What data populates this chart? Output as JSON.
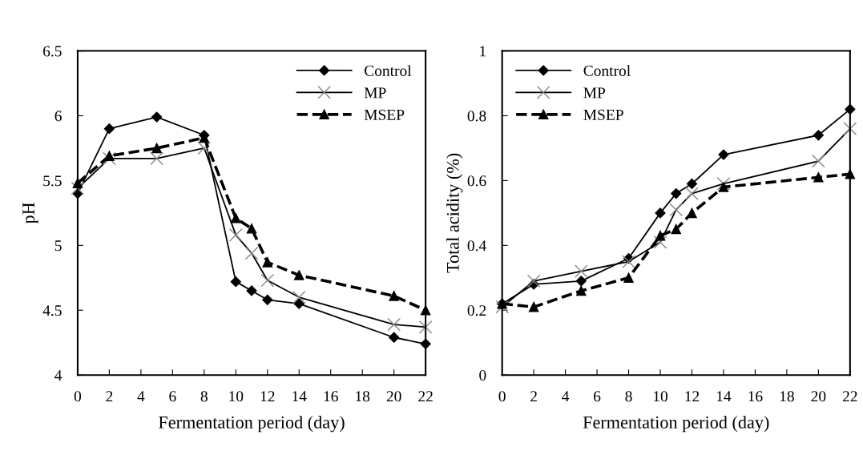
{
  "chart_data": [
    {
      "type": "line",
      "xlabel": "Fermentation period (day)",
      "ylabel": "pH",
      "x": [
        0,
        2,
        5,
        8,
        10,
        11,
        12,
        14,
        20,
        22
      ],
      "xlim": [
        0,
        22
      ],
      "xticks": [
        0,
        2,
        4,
        6,
        8,
        10,
        12,
        14,
        16,
        18,
        20,
        22
      ],
      "ylim": [
        4,
        6.5
      ],
      "yticks": [
        4,
        4.5,
        5,
        5.5,
        6,
        6.5
      ],
      "grid": false,
      "legend": "top right",
      "series": [
        {
          "name": "Control",
          "color": "#000000",
          "marker": "diamond",
          "line_style": "solid",
          "values": [
            5.4,
            5.9,
            5.99,
            5.85,
            4.72,
            4.65,
            4.58,
            4.55,
            4.29,
            4.24
          ]
        },
        {
          "name": "MP",
          "color": "#000000",
          "marker": "cross",
          "line_style": "solid",
          "values": [
            5.44,
            5.67,
            5.67,
            5.75,
            5.08,
            4.94,
            4.73,
            4.6,
            4.39,
            4.37
          ]
        },
        {
          "name": "MSEP",
          "color": "#000000",
          "marker": "triangle",
          "line_style": "dashed",
          "values": [
            5.48,
            5.69,
            5.75,
            5.83,
            5.21,
            5.13,
            4.87,
            4.77,
            4.61,
            4.5
          ]
        }
      ]
    },
    {
      "type": "line",
      "xlabel": "Fermentation period (day)",
      "ylabel": "Total acidity (%)",
      "x": [
        0,
        2,
        5,
        8,
        10,
        11,
        12,
        14,
        20,
        22
      ],
      "xlim": [
        0,
        22
      ],
      "xticks": [
        0,
        2,
        4,
        6,
        8,
        10,
        12,
        14,
        16,
        18,
        20,
        22
      ],
      "ylim": [
        0,
        1
      ],
      "yticks": [
        0,
        0.2,
        0.4,
        0.6,
        0.8,
        1
      ],
      "grid": false,
      "legend": "top left",
      "series": [
        {
          "name": "Control",
          "color": "#000000",
          "marker": "diamond",
          "line_style": "solid",
          "values": [
            0.22,
            0.28,
            0.29,
            0.36,
            0.5,
            0.56,
            0.59,
            0.68,
            0.74,
            0.82
          ]
        },
        {
          "name": "MP",
          "color": "#000000",
          "marker": "cross",
          "line_style": "solid",
          "values": [
            0.21,
            0.29,
            0.32,
            0.35,
            0.41,
            0.51,
            0.56,
            0.59,
            0.66,
            0.76
          ]
        },
        {
          "name": "MSEP",
          "color": "#000000",
          "marker": "triangle",
          "line_style": "dashed",
          "values": [
            0.22,
            0.21,
            0.26,
            0.3,
            0.43,
            0.45,
            0.5,
            0.58,
            0.61,
            0.62
          ]
        }
      ]
    }
  ]
}
